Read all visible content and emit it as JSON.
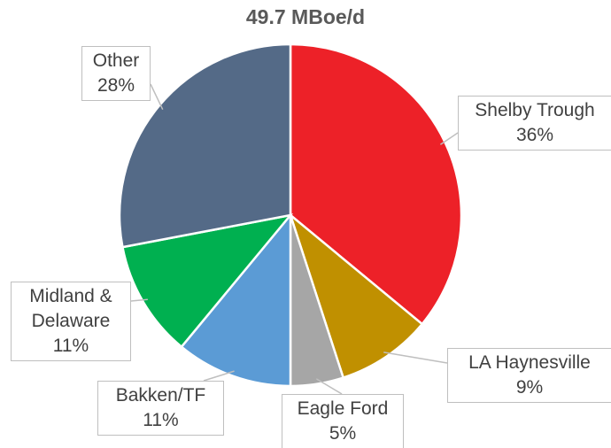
{
  "chart_data": {
    "type": "pie",
    "title": "49.7 MBoe/d",
    "categories": [
      "Shelby Trough",
      "LA Haynesville",
      "Eagle Ford",
      "Bakken/TF",
      "Midland & Delaware",
      "Other"
    ],
    "values": [
      36,
      9,
      5,
      11,
      11,
      28
    ],
    "value_labels": [
      "36%",
      "9%",
      "5%",
      "11%",
      "11%",
      "28%"
    ],
    "colors": [
      "#ed2128",
      "#c09000",
      "#a6a6a6",
      "#5b9bd5",
      "#00b050",
      "#546a87"
    ]
  }
}
